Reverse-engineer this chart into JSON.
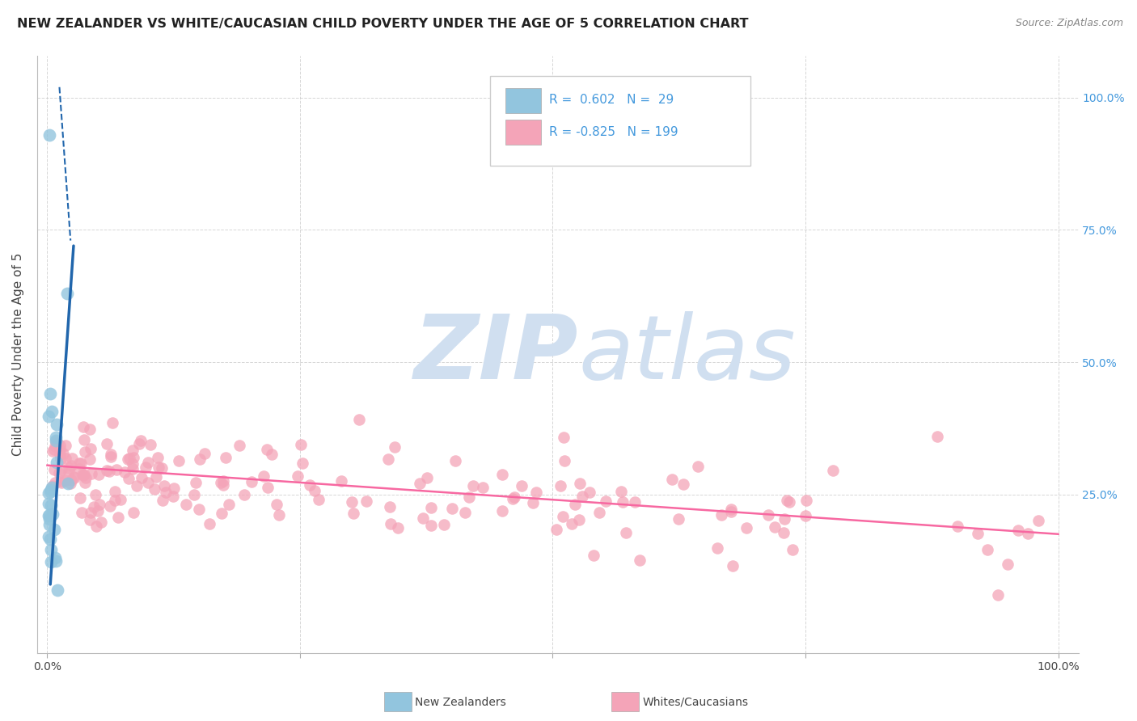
{
  "title": "NEW ZEALANDER VS WHITE/CAUCASIAN CHILD POVERTY UNDER THE AGE OF 5 CORRELATION CHART",
  "source": "Source: ZipAtlas.com",
  "ylabel": "Child Poverty Under the Age of 5",
  "xtick_vals": [
    0.0,
    0.25,
    0.5,
    0.75,
    1.0
  ],
  "xtick_labels": [
    "0.0%",
    "",
    "",
    "",
    "100.0%"
  ],
  "ytick_vals": [
    0.25,
    0.5,
    0.75,
    1.0
  ],
  "ytick_labels": [
    "25.0%",
    "50.0%",
    "75.0%",
    "100.0%"
  ],
  "xlim": [
    -0.01,
    1.02
  ],
  "ylim": [
    -0.05,
    1.08
  ],
  "blue_color": "#92c5de",
  "pink_color": "#f4a4b8",
  "blue_line_color": "#2166ac",
  "pink_line_color": "#f768a1",
  "watermark_zip": "ZIP",
  "watermark_atlas": "atlas",
  "watermark_color": "#d0dff0",
  "background_color": "#ffffff",
  "grid_color": "#cccccc",
  "title_fontsize": 11.5,
  "axis_label_fontsize": 11,
  "tick_fontsize": 10,
  "right_tick_color": "#4499dd",
  "pink_line_y_start": 0.305,
  "pink_line_y_end": 0.175
}
